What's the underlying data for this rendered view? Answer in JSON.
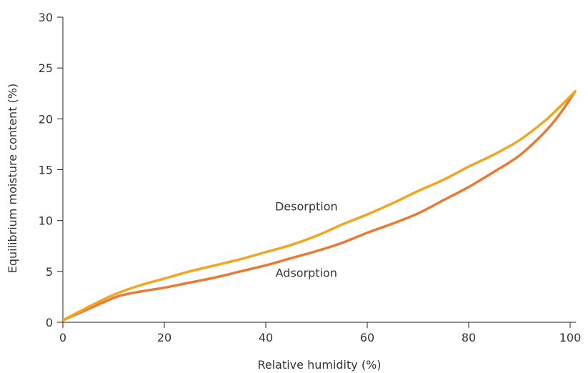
{
  "chart_data": {
    "type": "line",
    "xlabel": "Relative humidity (%)",
    "ylabel": "Equilibrium moisture content (%)",
    "xlim": [
      0,
      100
    ],
    "ylim": [
      0,
      30
    ],
    "x_ticks": [
      0,
      20,
      40,
      60,
      80,
      100
    ],
    "y_ticks": [
      0,
      5,
      10,
      15,
      20,
      25,
      30
    ],
    "x_tick_labels": [
      "0",
      "20",
      "40",
      "60",
      "80",
      "100"
    ],
    "y_tick_labels": [
      "0",
      "5",
      "10",
      "15",
      "20",
      "25",
      "30"
    ],
    "grid": false,
    "series": [
      {
        "name": "Desorption",
        "color": "#F2A51E",
        "label_at": [
          48,
          11.4
        ],
        "x": [
          0,
          5,
          10,
          15,
          20,
          25,
          30,
          35,
          40,
          45,
          50,
          55,
          60,
          65,
          70,
          75,
          80,
          85,
          90,
          95,
          98,
          101
        ],
        "y": [
          0.2,
          1.5,
          2.7,
          3.6,
          4.3,
          5.0,
          5.6,
          6.2,
          6.9,
          7.6,
          8.5,
          9.6,
          10.6,
          11.7,
          12.9,
          14.0,
          15.3,
          16.5,
          17.9,
          19.8,
          21.2,
          22.7
        ]
      },
      {
        "name": "Adsorption",
        "color": "#EA7A32",
        "label_at": [
          48,
          4.9
        ],
        "x": [
          0,
          5,
          10,
          12,
          15,
          20,
          25,
          30,
          35,
          40,
          45,
          50,
          55,
          60,
          65,
          70,
          75,
          80,
          85,
          90,
          95,
          98,
          101
        ],
        "y": [
          0.2,
          1.3,
          2.4,
          2.7,
          3.0,
          3.4,
          3.9,
          4.4,
          5.0,
          5.6,
          6.3,
          7.0,
          7.8,
          8.8,
          9.7,
          10.7,
          12.0,
          13.3,
          14.8,
          16.4,
          18.7,
          20.5,
          22.7
        ]
      }
    ]
  }
}
